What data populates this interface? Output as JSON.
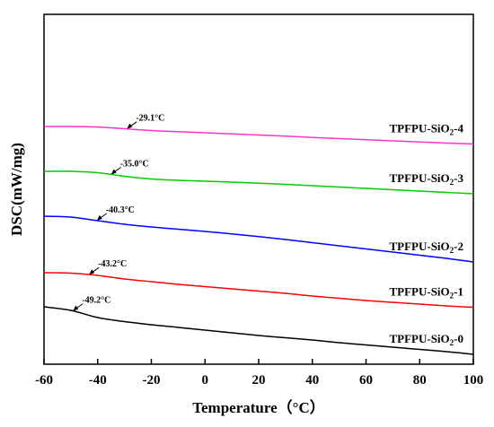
{
  "chart_data": {
    "type": "line",
    "xlabel": "Temperature（°C）",
    "ylabel": "DSC(mW/mg)",
    "xlim": [
      -60,
      100
    ],
    "xticks": [
      -60,
      -40,
      -20,
      0,
      20,
      40,
      60,
      80,
      100
    ],
    "y_ticks_visible": false,
    "grid": false,
    "x": [
      -60,
      -50,
      -40,
      -30,
      -20,
      -10,
      0,
      10,
      20,
      30,
      40,
      50,
      60,
      70,
      80,
      90,
      100
    ],
    "series": [
      {
        "name": "TPFPU-SiO2-4",
        "color": "#ff33cc",
        "y": [
          -1.0,
          -1.0,
          -1.6,
          -3.5,
          -5.5,
          -6.8,
          -8.0,
          -9.2,
          -10.5,
          -11.8,
          -13.2,
          -14.5,
          -15.8,
          -17.0,
          -18.2,
          -19.5,
          -20.5
        ],
        "annotation": "-29.1°C",
        "annotation_x": -29.1
      },
      {
        "name": "TPFPU-SiO2-3",
        "color": "#00cc00",
        "y": [
          -51.0,
          -51.0,
          -52.5,
          -56.5,
          -59.5,
          -61.0,
          -62.0,
          -63.0,
          -64.2,
          -65.5,
          -67.0,
          -68.5,
          -70.0,
          -71.5,
          -73.0,
          -74.5,
          -76.0
        ],
        "annotation": "-35.0°C",
        "annotation_x": -35.0
      },
      {
        "name": "TPFPU-SiO2-2",
        "color": "#0000ff",
        "y": [
          -101.0,
          -102.0,
          -106.0,
          -110.0,
          -113.0,
          -115.5,
          -118.0,
          -120.8,
          -123.8,
          -127.0,
          -130.5,
          -134.0,
          -137.5,
          -141.0,
          -144.5,
          -148.0,
          -152.0
        ],
        "annotation": "-40.3°C",
        "annotation_x": -40.3
      },
      {
        "name": "TPFPU-SiO2-1",
        "color": "#ff0000",
        "y": [
          -164.0,
          -164.5,
          -167.0,
          -171.0,
          -174.0,
          -177.0,
          -179.5,
          -182.0,
          -184.5,
          -187.0,
          -190.0,
          -192.5,
          -195.0,
          -197.0,
          -199.0,
          -201.0,
          -202.5
        ],
        "annotation": "-43.2°C",
        "annotation_x": -43.2
      },
      {
        "name": "TPFPU-SiO2-0",
        "color": "#000000",
        "y": [
          -202.0,
          -206.0,
          -214.0,
          -218.5,
          -222.0,
          -225.0,
          -228.0,
          -231.0,
          -234.0,
          -236.5,
          -239.0,
          -242.0,
          -244.5,
          -247.0,
          -249.5,
          -252.0,
          -255.0
        ],
        "annotation": "-49.2°C",
        "annotation_x": -49.2
      }
    ]
  }
}
